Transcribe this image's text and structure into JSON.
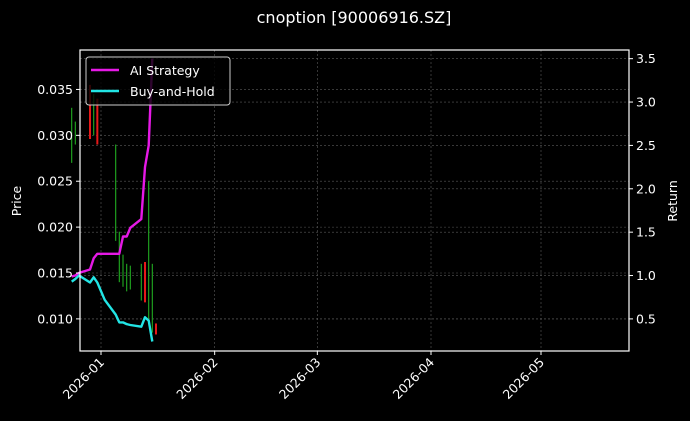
{
  "chart_data": {
    "type": "line",
    "title": "cnoption [90006916.SZ]",
    "xlabel": "",
    "ylabel": "Price",
    "ylabel_right": "Return",
    "x_ticks": [
      "2026-01",
      "2026-02",
      "2026-03",
      "2026-04",
      "2026-05"
    ],
    "y_ticks_left": [
      "0.010",
      "0.015",
      "0.020",
      "0.025",
      "0.030",
      "0.035"
    ],
    "y_ticks_right": [
      "0.5",
      "1.0",
      "1.5",
      "2.0",
      "2.5",
      "3.0",
      "3.5"
    ],
    "ylim_left": [
      0.0065,
      0.0393
    ],
    "ylim_right": [
      0.13,
      3.6
    ],
    "grid": true,
    "legend_position": "upper left",
    "legend": [
      "AI Strategy",
      "Buy-and-Hold"
    ],
    "colors": {
      "background": "#000000",
      "ai_strategy": "#e619e6",
      "buy_and_hold": "#22e5e5",
      "candle_up": "#1f9e1f",
      "candle_down": "#e61919",
      "axes": "#ffffff",
      "grid": "#555555"
    },
    "series": [
      {
        "name": "AI Strategy",
        "axis": "right",
        "x": [
          "2025-12-24",
          "2025-12-25",
          "2025-12-26",
          "2025-12-29",
          "2025-12-30",
          "2025-12-31",
          "2026-01-02",
          "2026-01-05",
          "2026-01-06",
          "2026-01-07",
          "2026-01-08",
          "2026-01-09",
          "2026-01-12",
          "2026-01-13",
          "2026-01-14",
          "2026-01-15"
        ],
        "values": [
          0.99,
          1.0,
          1.03,
          1.07,
          1.2,
          1.25,
          1.25,
          1.25,
          1.25,
          1.45,
          1.45,
          1.55,
          1.65,
          2.25,
          2.5,
          3.5
        ]
      },
      {
        "name": "Buy-and-Hold",
        "axis": "right",
        "x": [
          "2025-12-24",
          "2025-12-25",
          "2025-12-26",
          "2025-12-29",
          "2025-12-30",
          "2025-12-31",
          "2026-01-02",
          "2026-01-05",
          "2026-01-06",
          "2026-01-07",
          "2026-01-08",
          "2026-01-09",
          "2026-01-12",
          "2026-01-13",
          "2026-01-14",
          "2026-01-15"
        ],
        "values": [
          0.93,
          0.96,
          1.0,
          0.92,
          0.98,
          0.92,
          0.72,
          0.55,
          0.46,
          0.46,
          0.44,
          0.43,
          0.41,
          0.52,
          0.48,
          0.24
        ]
      },
      {
        "name": "Price (candlestick)",
        "axis": "left",
        "type": "candlestick",
        "candles": [
          {
            "x": "2025-12-24",
            "low": 0.027,
            "high": 0.033,
            "dir": "up"
          },
          {
            "x": "2025-12-25",
            "low": 0.029,
            "high": 0.0315,
            "dir": "up"
          },
          {
            "x": "2025-12-29",
            "low": 0.0296,
            "high": 0.0355,
            "dir": "down"
          },
          {
            "x": "2025-12-30",
            "low": 0.03,
            "high": 0.0345,
            "dir": "up"
          },
          {
            "x": "2025-12-31",
            "low": 0.029,
            "high": 0.034,
            "dir": "down"
          },
          {
            "x": "2026-01-05",
            "low": 0.0185,
            "high": 0.029,
            "dir": "up"
          },
          {
            "x": "2026-01-06",
            "low": 0.014,
            "high": 0.0195,
            "dir": "up"
          },
          {
            "x": "2026-01-07",
            "low": 0.0135,
            "high": 0.017,
            "dir": "up"
          },
          {
            "x": "2026-01-08",
            "low": 0.013,
            "high": 0.016,
            "dir": "up"
          },
          {
            "x": "2026-01-09",
            "low": 0.0132,
            "high": 0.0158,
            "dir": "up"
          },
          {
            "x": "2026-01-12",
            "low": 0.012,
            "high": 0.016,
            "dir": "up"
          },
          {
            "x": "2026-01-13",
            "low": 0.0118,
            "high": 0.0162,
            "dir": "down"
          },
          {
            "x": "2026-01-14",
            "low": 0.01,
            "high": 0.025,
            "dir": "up"
          },
          {
            "x": "2026-01-15",
            "low": 0.0085,
            "high": 0.016,
            "dir": "up"
          },
          {
            "x": "2026-01-16",
            "low": 0.0083,
            "high": 0.0095,
            "dir": "down"
          }
        ]
      }
    ]
  }
}
